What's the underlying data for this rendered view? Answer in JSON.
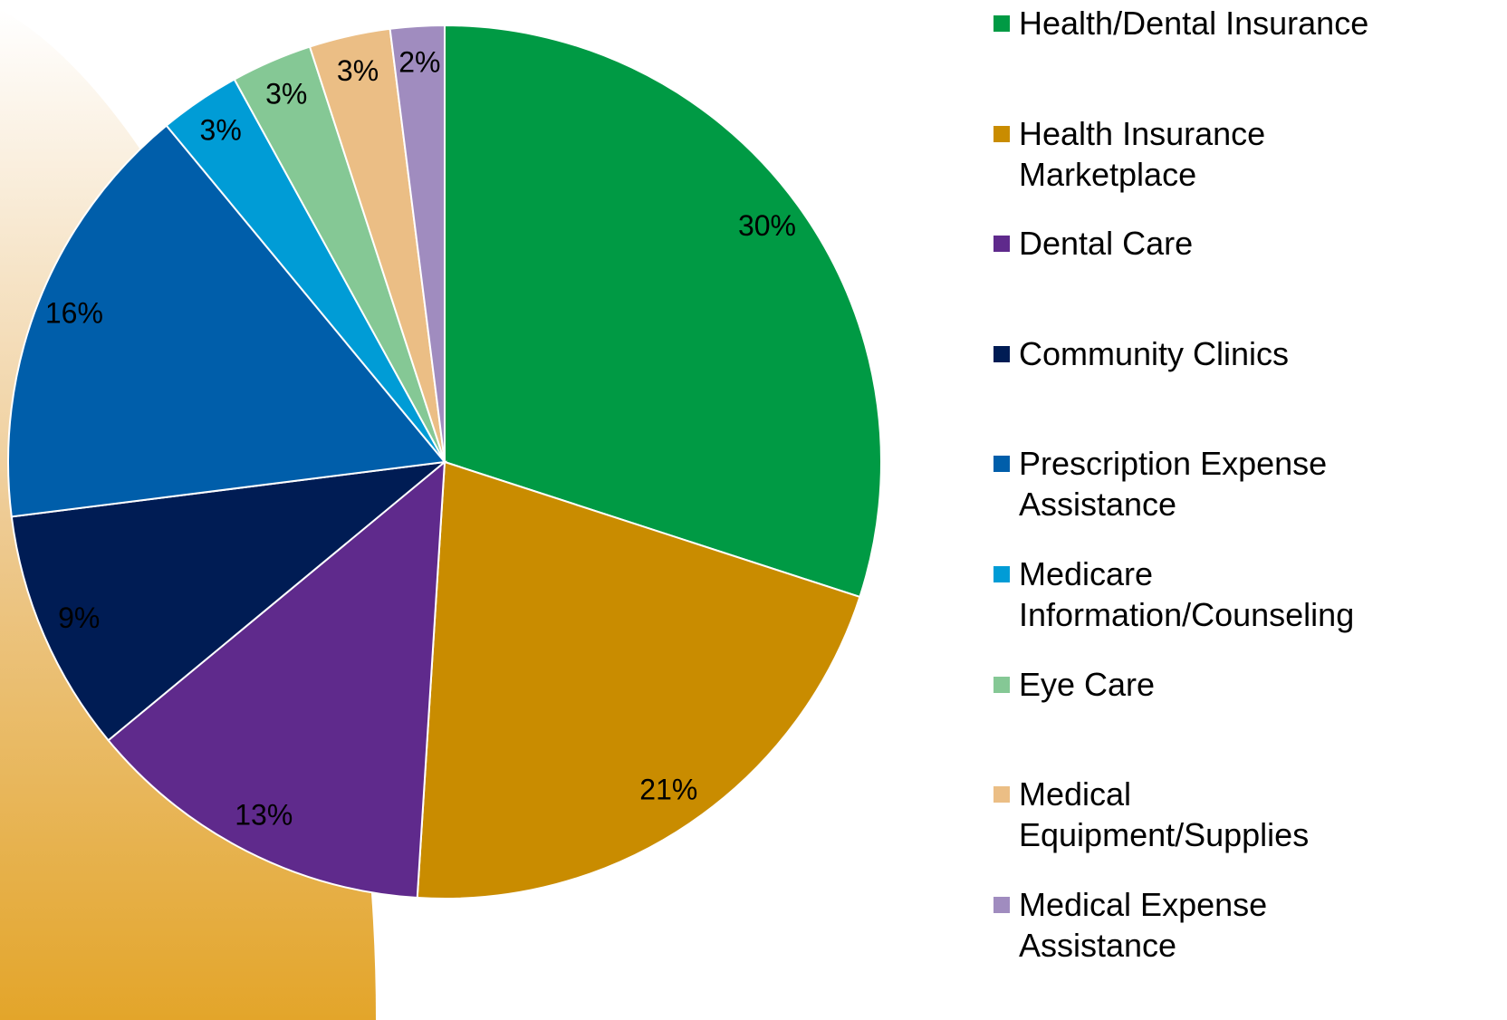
{
  "chart_data": {
    "type": "pie",
    "categories": [
      "Health/Dental Insurance",
      "Health Insurance Marketplace",
      "Dental Care",
      "Community Clinics",
      "Prescription Expense Assistance",
      "Medicare Information/Counseling",
      "Eye Care",
      "Medical Equipment/Supplies",
      "Medical Expense Assistance"
    ],
    "values": [
      30,
      21,
      13,
      9,
      16,
      3,
      3,
      3,
      2
    ],
    "value_labels": [
      "30%",
      "21%",
      "13%",
      "9%",
      "16%",
      "3%",
      "3%",
      "3%",
      "2%"
    ],
    "colors": [
      "#009a44",
      "#c98c00",
      "#5f2a8c",
      "#001c54",
      "#005eaa",
      "#009cd6",
      "#85c895",
      "#ebbe85",
      "#a08cbf"
    ],
    "legend": "right"
  }
}
